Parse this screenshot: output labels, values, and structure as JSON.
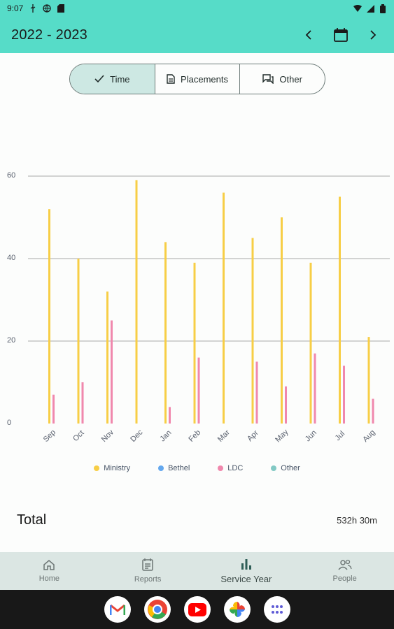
{
  "status_bar": {
    "time": "9:07"
  },
  "app_bar": {
    "title": "2022 - 2023"
  },
  "segments": [
    {
      "label": "Time",
      "icon": "check-icon",
      "active": true
    },
    {
      "label": "Placements",
      "icon": "document-icon",
      "active": false
    },
    {
      "label": "Other",
      "icon": "chat-icon",
      "active": false
    }
  ],
  "colors": {
    "accent": "#56dcc8",
    "ministry": "#f7ce46",
    "bethel": "#64a8ee",
    "ldc": "#f088ad",
    "other": "#82c9c4"
  },
  "chart_data": {
    "type": "bar",
    "categories": [
      "Sep",
      "Oct",
      "Nov",
      "Dec",
      "Jan",
      "Feb",
      "Mar",
      "Apr",
      "May",
      "Jun",
      "Jul",
      "Aug"
    ],
    "series": [
      {
        "name": "Ministry",
        "values": [
          52,
          40,
          32,
          59,
          44,
          39,
          56,
          45,
          50,
          39,
          55,
          21
        ]
      },
      {
        "name": "Bethel",
        "values": [
          0,
          0,
          0,
          0,
          0,
          0,
          0,
          0,
          0,
          0,
          0,
          0
        ]
      },
      {
        "name": "LDC",
        "values": [
          7,
          10,
          25,
          0,
          4,
          16,
          0,
          15,
          9,
          17,
          14,
          6
        ]
      },
      {
        "name": "Other",
        "values": [
          0,
          0,
          0,
          0,
          0,
          0,
          0,
          0,
          0,
          0,
          0,
          0
        ]
      }
    ],
    "yticks": [
      0,
      20,
      40,
      60
    ],
    "ylim": [
      0,
      60
    ],
    "grid": true,
    "legend_position": "bottom"
  },
  "total": {
    "label": "Total",
    "value": "532h 30m"
  },
  "bottom_nav": [
    {
      "label": "Home",
      "icon": "home-icon",
      "active": false
    },
    {
      "label": "Reports",
      "icon": "reports-icon",
      "active": false
    },
    {
      "label": "Service Year",
      "icon": "bar-chart-icon",
      "active": true
    },
    {
      "label": "People",
      "icon": "people-icon",
      "active": false
    }
  ],
  "taskbar_apps": [
    "gmail-icon",
    "chrome-icon",
    "youtube-icon",
    "photos-icon",
    "app-drawer-icon"
  ]
}
